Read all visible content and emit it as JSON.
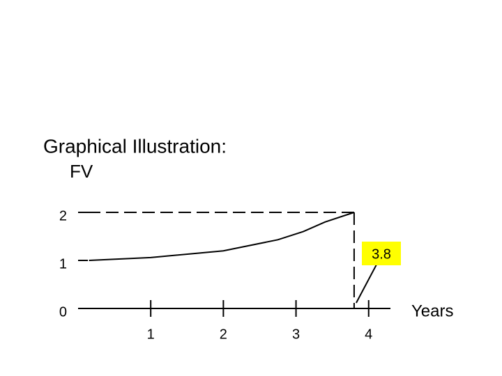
{
  "chart_data": {
    "type": "line",
    "title": "Graphical Illustration:",
    "y_label": "FV",
    "x_label": "Years",
    "x": [
      0.15,
      1,
      2,
      2.75,
      3.1,
      3.4,
      3.8
    ],
    "series": [
      {
        "name": "FV",
        "color": "#000000",
        "values": [
          1,
          1.06,
          1.2,
          1.43,
          1.6,
          1.8,
          2
        ]
      }
    ],
    "xlim": [
      0,
      4.3
    ],
    "xticks": [
      1,
      2,
      3,
      4
    ],
    "ylim": [
      0,
      2
    ],
    "yticks": [
      0,
      1,
      2
    ],
    "annotation": "3.8"
  }
}
